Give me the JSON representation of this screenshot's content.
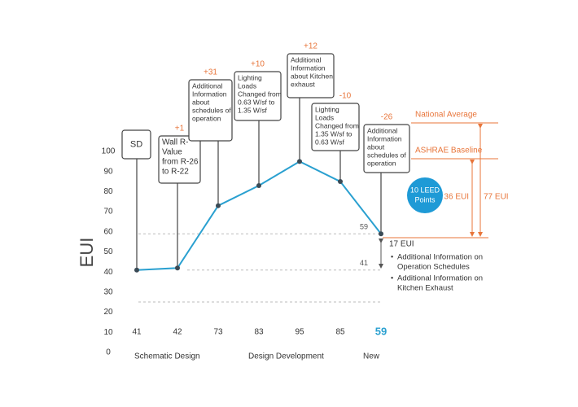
{
  "chart_data": {
    "type": "line",
    "ylabel": "EUI",
    "categories": [
      null,
      null,
      null,
      null,
      null,
      null,
      null
    ],
    "values": [
      41,
      42,
      73,
      83,
      95,
      85,
      59
    ],
    "color": "#2aa0d0",
    "ylim": [
      0,
      100
    ],
    "yticks": [
      0,
      10,
      20,
      30,
      40,
      50,
      60,
      70,
      80,
      90,
      100
    ],
    "phases": [
      "Schematic Design",
      "Design Development",
      "New"
    ],
    "reference_lines": [
      59,
      41
    ],
    "annotations": [
      {
        "lines": [
          "SD"
        ]
      },
      {
        "change": "+1",
        "lines": [
          "Wall R-",
          "Value",
          "from R-26",
          "to R-22"
        ]
      },
      {
        "change": "+31",
        "lines": [
          "Additional",
          "Information",
          "about",
          "schedules of",
          "operation"
        ]
      },
      {
        "change": "+10",
        "lines": [
          "Lighting",
          "Loads",
          "Changed from",
          "0.63 W/sf to",
          "1.35 W/sf"
        ]
      },
      {
        "change": "+12",
        "lines": [
          "Additional",
          "Information",
          "about Kitchen",
          "exhaust"
        ]
      },
      {
        "change": "-10",
        "lines": [
          "Lighting",
          "Loads",
          "Changed from",
          "1.35 W/sf to",
          "0.63 W/sf"
        ]
      },
      {
        "change": "-26",
        "lines": [
          "Additional",
          "Information",
          "about",
          "schedules of",
          "operation"
        ]
      }
    ],
    "benchmarks": {
      "national_average": "National Average",
      "ashrae_baseline": "ASHRAE Baseline",
      "national_gap": "77 EUI",
      "ashrae_gap": "36 EUI",
      "leed": [
        "10 LEED",
        "Points"
      ],
      "savings": "17 EUI",
      "bullets": [
        [
          "Additional Information on",
          "Operation Schedules"
        ],
        [
          "Additional Information on",
          "Kitchen Exhaust"
        ]
      ]
    }
  }
}
